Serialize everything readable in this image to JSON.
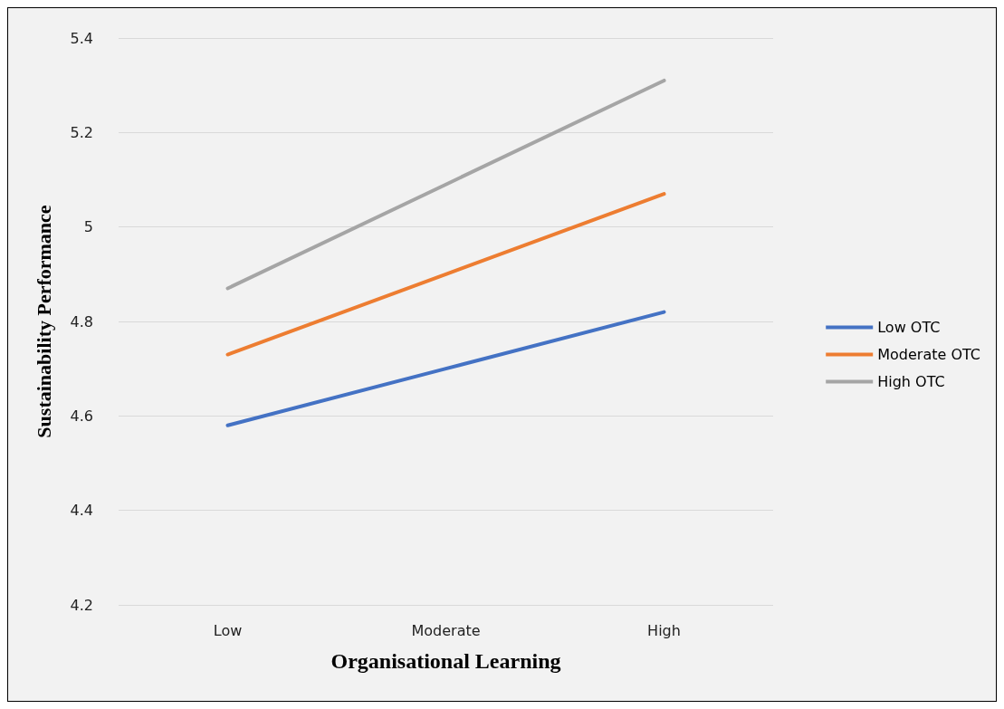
{
  "chart_data": {
    "type": "line",
    "xlabel": "Organisational Learning",
    "ylabel": "Sustainability Performance",
    "categories": [
      "Low",
      "Moderate",
      "High"
    ],
    "series": [
      {
        "name": "Low OTC",
        "color": "#4472c4",
        "values": [
          4.58,
          4.7,
          4.82
        ]
      },
      {
        "name": "Moderate OTC",
        "color": "#ed7d31",
        "values": [
          4.73,
          4.9,
          5.07
        ]
      },
      {
        "name": "High OTC",
        "color": "#a5a5a5",
        "values": [
          4.87,
          5.09,
          5.31
        ]
      }
    ],
    "ylim": [
      4.2,
      5.4
    ],
    "yticks": [
      4.2,
      4.4,
      4.6,
      4.8,
      5,
      5.2,
      5.4
    ],
    "grid": "y",
    "legend": "right",
    "marker": "none",
    "line_style": "solid"
  }
}
